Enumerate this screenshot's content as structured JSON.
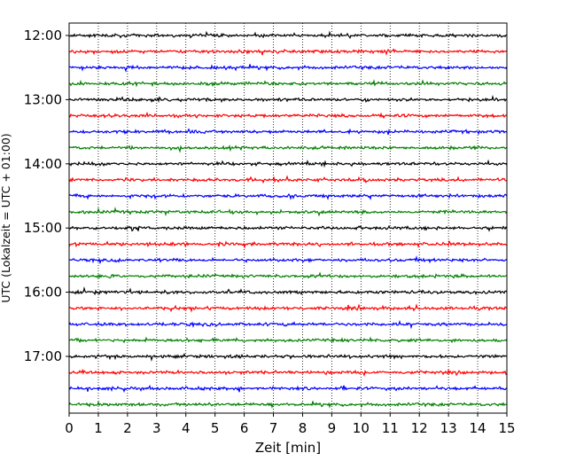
{
  "chart_data": {
    "type": "line",
    "title": "",
    "xlabel": "Zeit  [min]",
    "ylabel": "UTC (Lokalzeit = UTC + 01:00)",
    "xlim": [
      0,
      15
    ],
    "x_ticks": [
      0,
      1,
      2,
      3,
      4,
      5,
      6,
      7,
      8,
      9,
      10,
      11,
      12,
      13,
      14,
      15
    ],
    "y_tick_labels": [
      "12:00",
      "13:00",
      "14:00",
      "15:00",
      "16:00",
      "17:00"
    ],
    "grid": "vertical dotted lines at each minute",
    "trace_start_hour": "12:00",
    "trace_interval_minutes": 15,
    "trace_count": 24,
    "trace_colors": [
      "#000000",
      "#ff0000",
      "#0000ff",
      "#008000"
    ]
  }
}
